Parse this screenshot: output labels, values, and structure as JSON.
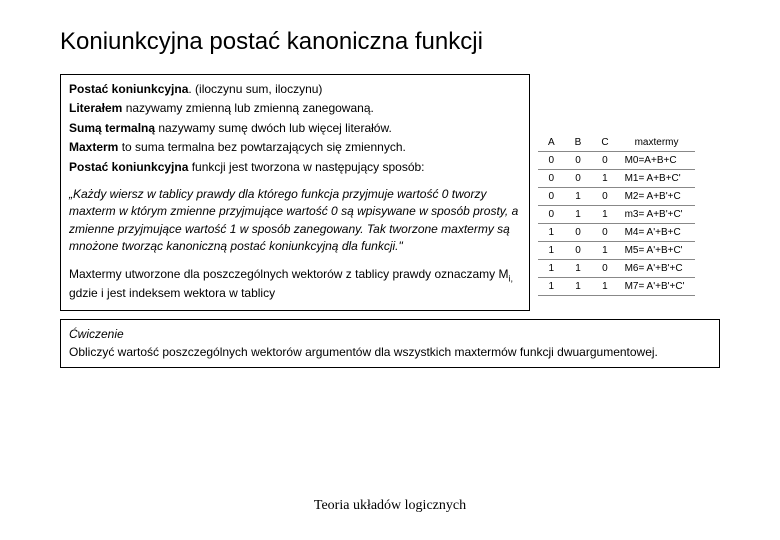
{
  "title": "Koniunkcyjna postać kanoniczna funkcji",
  "definitions": {
    "line1_bold": "Postać koniunkcyjna",
    "line1_rest": ". (iloczynu sum, iloczynu)",
    "line2_bold": "Literałem",
    "line2_rest": " nazywamy zmienną lub zmienną zanegowaną.",
    "line3_bold": "Sumą termalną",
    "line3_rest": " nazywamy sumę dwóch lub więcej literałów.",
    "line4_bold": "Maxterm",
    "line4_rest": " to suma termalna bez powtarzających się zmiennych.",
    "line5_bold": "Postać koniunkcyjna",
    "line5_rest": " funkcji jest tworzona w następujący sposób:"
  },
  "quote": "„Każdy wiersz w  tablicy prawdy dla którego funkcja przyjmuje wartość 0 tworzy maxterm w którym zmienne przyjmujące wartość 0 są wpisywane w sposób prosty, a zmienne  przyjmujące wartość 1 w sposób zanegowany. Tak tworzone maxtermy są mnożone tworząc kanoniczną postać koniunkcyjną dla funkcji.\"",
  "maxtext_part1": "Maxtermy utworzone dla poszczególnych wektorów z tablicy prawdy oznaczamy M",
  "maxtext_sub": "i,",
  "maxtext_part2": " gdzie i jest indeksem wektora w tablicy",
  "exercise": {
    "label": "Ćwiczenie",
    "text": "Obliczyć wartość poszczególnych wektorów argumentów dla wszystkich maxtermów funkcji dwuargumentowej."
  },
  "table": {
    "headers": [
      "A",
      "B",
      "C",
      "maxtermy"
    ],
    "rows": [
      [
        "0",
        "0",
        "0",
        "M0=A+B+C"
      ],
      [
        "0",
        "0",
        "1",
        "M1= A+B+C'"
      ],
      [
        "0",
        "1",
        "0",
        "M2= A+B'+C"
      ],
      [
        "0",
        "1",
        "1",
        "m3= A+B'+C'"
      ],
      [
        "1",
        "0",
        "0",
        "M4= A'+B+C"
      ],
      [
        "1",
        "0",
        "1",
        "M5= A'+B+C'"
      ],
      [
        "1",
        "1",
        "0",
        "M6= A'+B'+C"
      ],
      [
        "1",
        "1",
        "1",
        "M7= A'+B'+C'"
      ]
    ]
  },
  "footer": "Teoria układów logicznych"
}
